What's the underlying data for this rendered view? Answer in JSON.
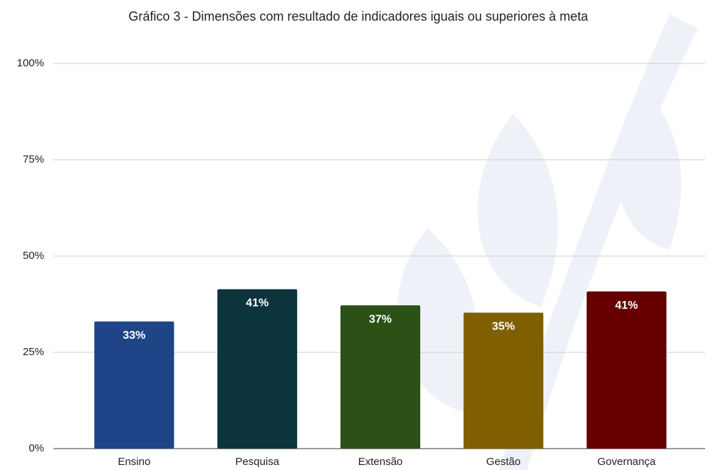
{
  "chart_data": {
    "type": "bar",
    "title": "Gráfico 3 - Dimensões com resultado de indicadores iguais ou superiores à meta",
    "categories": [
      "Ensino",
      "Pesquisa",
      "Extensão",
      "Gestão",
      "Governança"
    ],
    "values": [
      33,
      41.4,
      37.2,
      35.3,
      40.8
    ],
    "value_labels": [
      "33%",
      "41%",
      "37%",
      "35%",
      "41%"
    ],
    "colors": [
      "#1f4488",
      "#0b343c",
      "#2b5116",
      "#7f5f00",
      "#660000"
    ],
    "ylim": [
      0,
      100
    ],
    "yticks": [
      {
        "value": 0,
        "label": "0%"
      },
      {
        "value": 25,
        "label": "25%"
      },
      {
        "value": 50,
        "label": "50%"
      },
      {
        "value": 75,
        "label": "75%"
      },
      {
        "value": 100,
        "label": "100%"
      }
    ],
    "grid": true
  }
}
